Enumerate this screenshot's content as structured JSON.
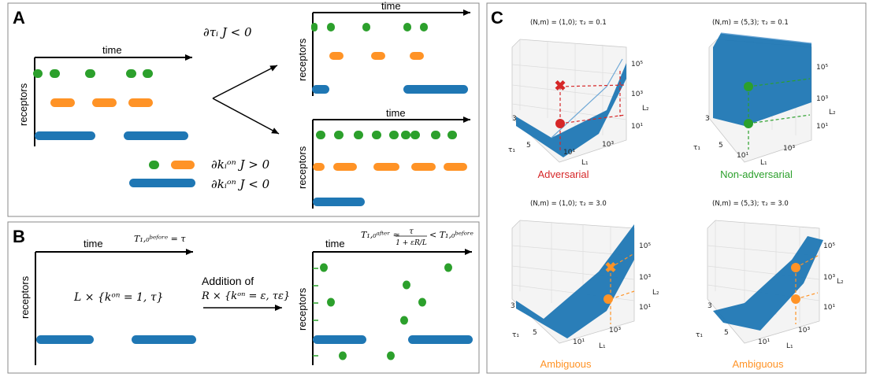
{
  "colors": {
    "green": "#2ca02c",
    "orange": "#ff9326",
    "blue": "#1f77b4",
    "red": "#d62728",
    "frame": "#888888",
    "grid": "#dcdcdc"
  },
  "panelA": {
    "letter": "A",
    "time": "time",
    "receptors": "receptors",
    "eq_tau": "∂τᵢ J < 0",
    "eq_k_pos": "∂kᵢᵒⁿ J > 0",
    "eq_k_neg": "∂kᵢᵒⁿ J < 0"
  },
  "panelB": {
    "letter": "B",
    "time": "time",
    "receptors": "receptors",
    "t_before": "T₁,₀ᵇᵉᶠᵒʳᵉ = τ",
    "lk": "L × {kᵒⁿ = 1, τ}",
    "addition_line1": "Addition of",
    "addition_line2": "R × {kᵒⁿ = ε, τε}",
    "t_after_lhs": "T₁,₀ᵃᶠᵗᵉʳ ≃",
    "t_after_num": "τ",
    "t_after_den": "1 + εR/L",
    "t_after_rhs": "< T₁,₀ᵇᵉᶠᵒʳᵉ"
  },
  "panelC": {
    "letter": "C",
    "plots": [
      {
        "title": "(N,m) = (1,0); τ₂ = 0.1",
        "caption": "Adversarial",
        "marker": "red",
        "cross": true
      },
      {
        "title": "(N,m) = (5,3); τ₂ = 0.1",
        "caption": "Non-adversarial",
        "marker": "green",
        "cross": false
      },
      {
        "title": "(N,m) = (1,0); τ₂ = 3.0",
        "caption": "Ambiguous",
        "marker": "orange",
        "cross": true
      },
      {
        "title": "(N,m) = (5,3); τ₂ = 3.0",
        "caption": "Ambiguous",
        "marker": "orange",
        "cross": false
      }
    ],
    "axis": {
      "tau1": "τ₁",
      "L1": "L₁",
      "L2": "L₂",
      "tau_ticks": [
        "3",
        "5"
      ],
      "L1_ticks": [
        "10¹",
        "10³"
      ],
      "L2_ticks": [
        "10¹",
        "10³",
        "10⁵"
      ]
    }
  }
}
